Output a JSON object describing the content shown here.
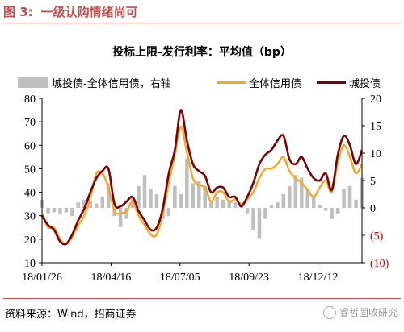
{
  "figure": {
    "number": "图 3:",
    "title": "一级认购情绪尚可"
  },
  "source": "资料来源：Wind，招商证券",
  "watermark": "睿哲固收研究",
  "chart_data": {
    "type": "line",
    "title": "投标上限-发行利率：平均值（bp）",
    "legend_placement": "top",
    "x_tick_labels": [
      "18/01/26",
      "18/04/16",
      "18/07/05",
      "18/09/23",
      "18/12/12"
    ],
    "x_range": [
      "2018-01-26",
      "2019-02-01"
    ],
    "left_axis": {
      "ylim": [
        10,
        80
      ],
      "ticks": [
        "10",
        "20",
        "30",
        "40",
        "50",
        "60",
        "70",
        "80"
      ]
    },
    "right_axis": {
      "ylim": [
        -10,
        20
      ],
      "ticks": [
        "(10)",
        "(5)",
        "0",
        "5",
        "10",
        "15",
        "20"
      ],
      "negative_color": "#c00000"
    },
    "colors": {
      "bars": "#bfbfbf",
      "series_all": "#f5a623",
      "series_city": "#7f0000"
    },
    "series": [
      {
        "name": "城投债-全体信用债，右轴",
        "axis": "right",
        "kind": "bar",
        "x": [
          "2018-01-26",
          "2018-02-02",
          "2018-02-09",
          "2018-02-16",
          "2018-02-23",
          "2018-03-02",
          "2018-03-09",
          "2018-03-16",
          "2018-03-23",
          "2018-03-30",
          "2018-04-06",
          "2018-04-13",
          "2018-04-20",
          "2018-04-27",
          "2018-05-04",
          "2018-05-11",
          "2018-05-18",
          "2018-05-25",
          "2018-06-01",
          "2018-06-08",
          "2018-06-15",
          "2018-06-22",
          "2018-06-29",
          "2018-07-06",
          "2018-07-13",
          "2018-07-20",
          "2018-07-27",
          "2018-08-03",
          "2018-08-10",
          "2018-08-17",
          "2018-08-24",
          "2018-08-31",
          "2018-09-07",
          "2018-09-14",
          "2018-09-21",
          "2018-09-28",
          "2018-10-05",
          "2018-10-12",
          "2018-10-19",
          "2018-10-26",
          "2018-11-02",
          "2018-11-09",
          "2018-11-16",
          "2018-11-23",
          "2018-11-30",
          "2018-12-07",
          "2018-12-14",
          "2018-12-21",
          "2018-12-28",
          "2019-01-04",
          "2019-01-11",
          "2019-01-18",
          "2019-01-25",
          "2019-02-01"
        ],
        "values": [
          1.5,
          -1.0,
          -0.8,
          -1.2,
          -0.8,
          -1.5,
          1.0,
          1.5,
          1.2,
          0.8,
          2.0,
          4.5,
          -1.5,
          -3.5,
          -2.0,
          2.0,
          4.0,
          6.0,
          3.5,
          2.5,
          -2.0,
          -1.5,
          4.0,
          2.5,
          9.0,
          4.5,
          5.0,
          4.0,
          1.0,
          2.0,
          1.5,
          1.5,
          1.0,
          0.5,
          -1.0,
          -4.0,
          -5.5,
          -2.0,
          0.5,
          1.0,
          2.5,
          4.0,
          6.0,
          5.5,
          3.5,
          2.0,
          0.5,
          -0.5,
          -2.0,
          -1.0,
          3.5,
          4.0,
          1.5,
          5.5
        ]
      },
      {
        "name": "全体信用债",
        "axis": "left",
        "kind": "line",
        "x": [
          "2018-01-26",
          "2018-02-02",
          "2018-02-09",
          "2018-02-16",
          "2018-02-23",
          "2018-03-02",
          "2018-03-09",
          "2018-03-16",
          "2018-03-23",
          "2018-03-30",
          "2018-04-06",
          "2018-04-13",
          "2018-04-20",
          "2018-04-27",
          "2018-05-04",
          "2018-05-11",
          "2018-05-18",
          "2018-05-25",
          "2018-06-01",
          "2018-06-08",
          "2018-06-15",
          "2018-06-22",
          "2018-06-29",
          "2018-07-06",
          "2018-07-13",
          "2018-07-20",
          "2018-07-27",
          "2018-08-03",
          "2018-08-10",
          "2018-08-17",
          "2018-08-24",
          "2018-08-31",
          "2018-09-07",
          "2018-09-14",
          "2018-09-21",
          "2018-09-28",
          "2018-10-05",
          "2018-10-12",
          "2018-10-19",
          "2018-10-26",
          "2018-11-02",
          "2018-11-09",
          "2018-11-16",
          "2018-11-23",
          "2018-11-30",
          "2018-12-07",
          "2018-12-14",
          "2018-12-21",
          "2018-12-28",
          "2019-01-04",
          "2019-01-11",
          "2019-01-18",
          "2019-01-25",
          "2019-02-01"
        ],
        "values": [
          31,
          25,
          25,
          20,
          18,
          21,
          26,
          30,
          38,
          48,
          48,
          42,
          32,
          31,
          32,
          36,
          30,
          26,
          22,
          22,
          31,
          44,
          56,
          68,
          57,
          46,
          43,
          42,
          36,
          40,
          40,
          36,
          37,
          35,
          37,
          40,
          46,
          50,
          50,
          52,
          55,
          49,
          46,
          44,
          41,
          38,
          42,
          45,
          40,
          53,
          60,
          55,
          48,
          52
        ]
      },
      {
        "name": "城投债",
        "axis": "left",
        "kind": "line",
        "x": [
          "2018-01-26",
          "2018-02-02",
          "2018-02-09",
          "2018-02-16",
          "2018-02-23",
          "2018-03-02",
          "2018-03-09",
          "2018-03-16",
          "2018-03-23",
          "2018-03-30",
          "2018-04-06",
          "2018-04-13",
          "2018-04-20",
          "2018-04-27",
          "2018-05-04",
          "2018-05-11",
          "2018-05-18",
          "2018-05-25",
          "2018-06-01",
          "2018-06-08",
          "2018-06-15",
          "2018-06-22",
          "2018-06-29",
          "2018-07-06",
          "2018-07-13",
          "2018-07-20",
          "2018-07-27",
          "2018-08-03",
          "2018-08-10",
          "2018-08-17",
          "2018-08-24",
          "2018-08-31",
          "2018-09-07",
          "2018-09-14",
          "2018-09-21",
          "2018-09-28",
          "2018-10-05",
          "2018-10-12",
          "2018-10-19",
          "2018-10-26",
          "2018-11-02",
          "2018-11-09",
          "2018-11-16",
          "2018-11-23",
          "2018-11-30",
          "2018-12-07",
          "2018-12-14",
          "2018-12-21",
          "2018-12-28",
          "2019-01-04",
          "2019-01-11",
          "2019-01-18",
          "2019-01-25",
          "2019-02-01"
        ],
        "values": [
          30,
          26,
          24,
          19,
          18,
          22,
          28,
          33,
          40,
          46,
          49,
          50,
          35,
          34,
          36,
          38,
          32,
          28,
          24,
          25,
          33,
          48,
          58,
          75,
          62,
          52,
          49,
          47,
          40,
          42,
          42,
          38,
          38,
          34,
          38,
          44,
          52,
          56,
          58,
          62,
          64,
          54,
          52,
          55,
          50,
          46,
          45,
          48,
          41,
          56,
          64,
          60,
          52,
          58
        ]
      }
    ]
  }
}
